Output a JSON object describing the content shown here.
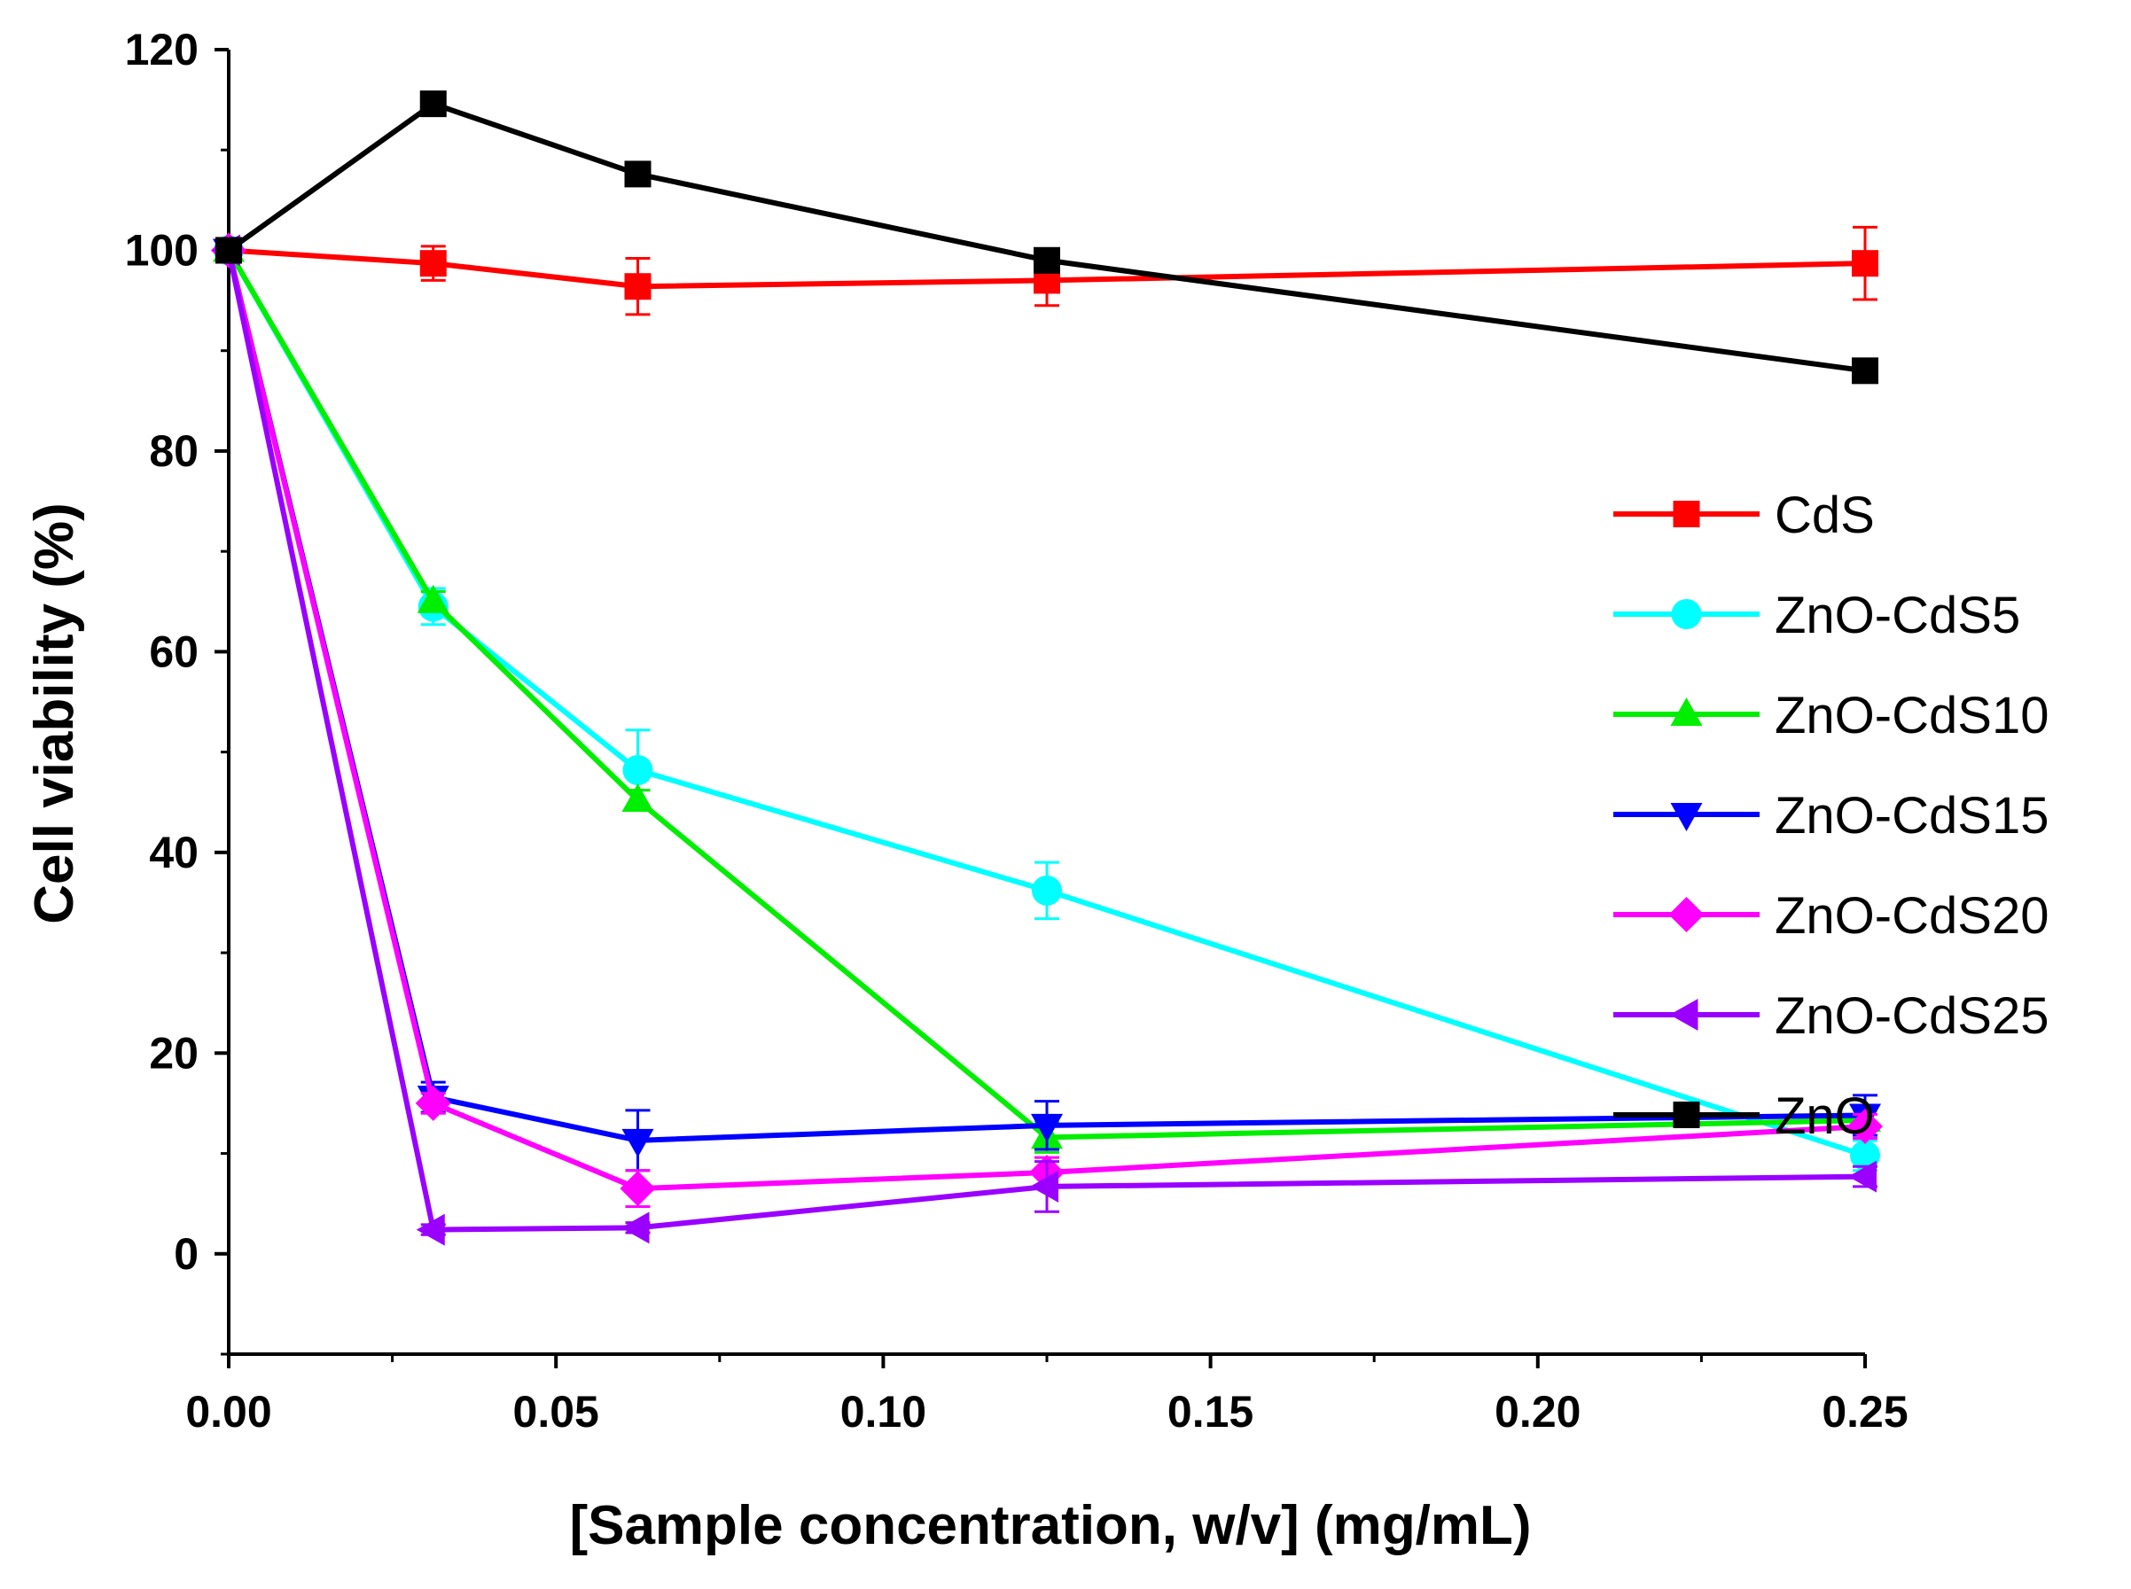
{
  "chart_data": {
    "type": "line",
    "title": "",
    "xlabel": "[Sample concentration, w/v]  (mg/mL)",
    "ylabel": "Cell viability  (%)",
    "xlim": [
      0,
      0.25
    ],
    "ylim": [
      -10,
      120
    ],
    "xticks": [
      0.0,
      0.05,
      0.1,
      0.15,
      0.2,
      0.25
    ],
    "xtick_labels": [
      "0.00",
      "0.05",
      "0.10",
      "0.15",
      "0.20",
      "0.25"
    ],
    "yticks": [
      0,
      20,
      40,
      60,
      80,
      100,
      120
    ],
    "ytick_labels": [
      "0",
      "20",
      "40",
      "60",
      "80",
      "100",
      "120"
    ],
    "grid": false,
    "legend_position": "right",
    "x": [
      0,
      0.03125,
      0.0625,
      0.125,
      0.25
    ],
    "series": [
      {
        "name": "CdS",
        "color": "#ff0000",
        "marker": "square",
        "values": [
          100,
          98.7,
          96.4,
          97.0,
          98.7
        ],
        "errors": [
          0,
          1.7,
          2.8,
          2.5,
          3.6
        ]
      },
      {
        "name": "ZnO-CdS5",
        "color": "#00ffff",
        "marker": "circle",
        "values": [
          100,
          64.5,
          48.2,
          36.2,
          9.8
        ],
        "errors": [
          0,
          1.8,
          4.0,
          2.8,
          1.5
        ]
      },
      {
        "name": "ZnO-CdS10",
        "color": "#00ee00",
        "marker": "triangle-up",
        "values": [
          100,
          65.0,
          45.2,
          11.6,
          13.3
        ],
        "errors": [
          0,
          1.0,
          1.0,
          1.5,
          1.0
        ]
      },
      {
        "name": "ZnO-CdS15",
        "color": "#0000ff",
        "marker": "triangle-down",
        "values": [
          100,
          15.6,
          11.3,
          12.8,
          13.8
        ],
        "errors": [
          0,
          1.5,
          3.0,
          2.4,
          2.0
        ]
      },
      {
        "name": "ZnO-CdS20",
        "color": "#ff00ff",
        "marker": "diamond",
        "values": [
          100,
          15.0,
          6.5,
          8.1,
          12.7
        ],
        "errors": [
          0,
          1.0,
          1.8,
          1.5,
          1.2
        ]
      },
      {
        "name": "ZnO-CdS25",
        "color": "#9900ff",
        "marker": "triangle-left",
        "values": [
          100,
          2.4,
          2.6,
          6.7,
          7.7
        ],
        "errors": [
          0,
          0.5,
          0.5,
          2.5,
          1.0
        ]
      },
      {
        "name": "ZnO",
        "color": "#000000",
        "marker": "square",
        "values": [
          100,
          114.6,
          107.6,
          99.0,
          88.0
        ],
        "errors": [
          0,
          0,
          0,
          0,
          0
        ]
      }
    ]
  }
}
